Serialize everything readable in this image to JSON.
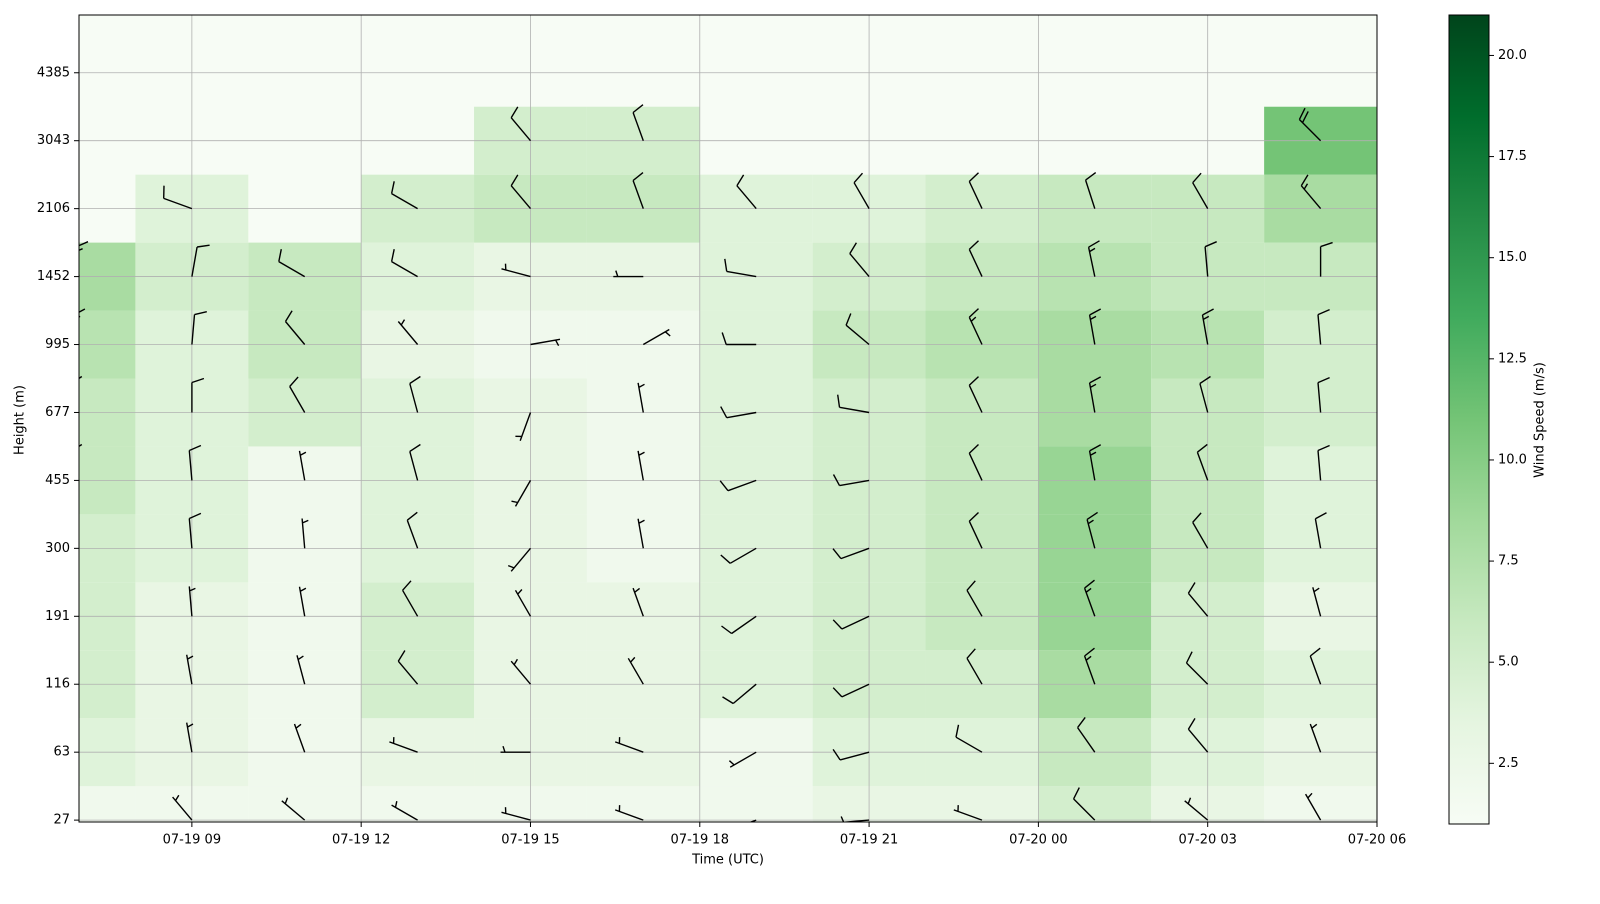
{
  "chart_data": {
    "type": "barbs",
    "xlabel": "Time (UTC)",
    "ylabel": "Height (m)",
    "colorbar_label": "Wind Speed (m/s)",
    "colormap": "Greens",
    "grid": true,
    "barb_color": "#000000",
    "xlim": [
      "07-19 07",
      "07-20 06"
    ],
    "xticks": [
      "07-19 09",
      "07-19 12",
      "07-19 15",
      "07-19 18",
      "07-19 21",
      "07-20 00",
      "07-20 03",
      "07-20 06"
    ],
    "ylim": [
      26,
      5526
    ],
    "yticks": [
      27,
      63,
      116,
      191,
      300,
      455,
      677,
      995,
      1452,
      2106,
      3043,
      4385
    ],
    "clim": [
      1,
      21
    ],
    "cticks": [
      {
        "value": 2.5,
        "label": "2.5"
      },
      {
        "value": 5,
        "label": "5.0"
      },
      {
        "value": 7.5,
        "label": "7.5"
      },
      {
        "value": 10,
        "label": "10.0"
      },
      {
        "value": 12.5,
        "label": "12.5"
      },
      {
        "value": 15,
        "label": "15.0"
      },
      {
        "value": 17.5,
        "label": "17.5"
      },
      {
        "value": 20,
        "label": "20.0"
      }
    ],
    "x": [
      "07-19 07",
      "07-19 09",
      "07-19 11",
      "07-19 13",
      "07-19 15",
      "07-19 17",
      "07-19 19",
      "07-19 21",
      "07-19 23",
      "07-20 01",
      "07-20 03",
      "07-20 05"
    ],
    "heights": [
      27,
      63,
      116,
      191,
      300,
      455,
      677,
      995,
      1452,
      2106,
      3043,
      4385
    ],
    "speed": [
      [
        2,
        2,
        2,
        2,
        2,
        2,
        2,
        3,
        3,
        5,
        3,
        2
      ],
      [
        4,
        3,
        2,
        3,
        3,
        3,
        2,
        4,
        4,
        6,
        4,
        3
      ],
      [
        5,
        3,
        2,
        5,
        3,
        3,
        4,
        5,
        5,
        8,
        5,
        4
      ],
      [
        5,
        3,
        2,
        5,
        3,
        3,
        4,
        5,
        6,
        9,
        5,
        3
      ],
      [
        5,
        4,
        2,
        4,
        3,
        2,
        4,
        5,
        6,
        9,
        6,
        4
      ],
      [
        6,
        4,
        2,
        4,
        3,
        2,
        4,
        5,
        6,
        9,
        6,
        4
      ],
      [
        6,
        4,
        5,
        4,
        3,
        2,
        4,
        5,
        6,
        8,
        6,
        5
      ],
      [
        7,
        4,
        6,
        3,
        2,
        2,
        4,
        6,
        7,
        8,
        7,
        5
      ],
      [
        8,
        5,
        6,
        4,
        3,
        3,
        4,
        5,
        6,
        7,
        6,
        6
      ],
      [
        null,
        4,
        null,
        5,
        6,
        6,
        4,
        4,
        5,
        6,
        6,
        8
      ],
      [
        null,
        null,
        null,
        null,
        5,
        5,
        null,
        null,
        null,
        null,
        null,
        11
      ],
      [
        null,
        null,
        null,
        null,
        null,
        null,
        null,
        null,
        null,
        null,
        null,
        null
      ]
    ],
    "direction": [
      [
        320,
        320,
        310,
        300,
        285,
        290,
        250,
        265,
        290,
        315,
        310,
        330
      ],
      [
        320,
        350,
        340,
        290,
        270,
        290,
        240,
        255,
        300,
        325,
        320,
        340
      ],
      [
        330,
        350,
        345,
        320,
        320,
        330,
        230,
        245,
        330,
        340,
        315,
        340
      ],
      [
        335,
        355,
        350,
        330,
        330,
        340,
        235,
        245,
        330,
        340,
        320,
        345
      ],
      [
        340,
        355,
        355,
        340,
        220,
        350,
        240,
        250,
        335,
        345,
        330,
        350
      ],
      [
        345,
        355,
        350,
        345,
        210,
        350,
        250,
        260,
        335,
        350,
        340,
        355
      ],
      [
        345,
        0,
        330,
        345,
        200,
        350,
        260,
        280,
        335,
        350,
        345,
        355
      ],
      [
        350,
        5,
        320,
        320,
        80,
        60,
        270,
        310,
        335,
        350,
        350,
        355
      ],
      [
        355,
        10,
        300,
        300,
        285,
        270,
        280,
        320,
        335,
        348,
        355,
        0
      ],
      [
        null,
        290,
        null,
        300,
        320,
        340,
        320,
        330,
        335,
        342,
        330,
        320
      ],
      [
        null,
        null,
        null,
        null,
        320,
        340,
        null,
        null,
        null,
        null,
        null,
        315
      ],
      [
        null,
        null,
        null,
        null,
        null,
        null,
        null,
        null,
        null,
        null,
        null,
        null
      ]
    ]
  }
}
